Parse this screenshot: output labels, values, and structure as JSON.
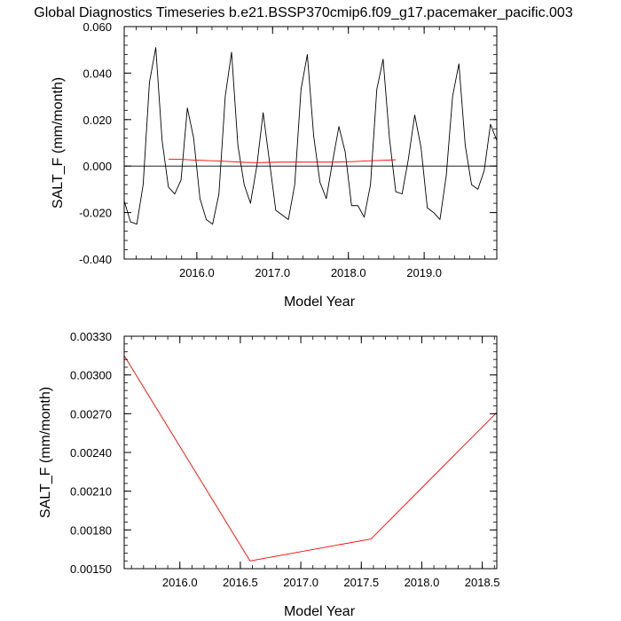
{
  "title": "Global Diagnostics Timeseries b.e21.BSSP370cmip6.f09_g17.pacemaker_pacific.003",
  "chart_data": [
    {
      "type": "line",
      "xlabel": "Model Year",
      "ylabel": "SALT_F (mm/month)",
      "xlim": [
        2015.0417,
        2019.9583
      ],
      "ylim": [
        -0.04,
        0.06
      ],
      "xticks": [
        2016.0,
        2017.0,
        2018.0,
        2019.0
      ],
      "xtick_labels": [
        "2016.0",
        "2017.0",
        "2018.0",
        "2019.0"
      ],
      "yticks": [
        -0.04,
        -0.02,
        0.0,
        0.02,
        0.04,
        0.06
      ],
      "ytick_labels": [
        "-0.040",
        "-0.020",
        "0.000",
        "0.020",
        "0.040",
        "0.060"
      ],
      "zero_line": true,
      "series": [
        {
          "color": "#000000",
          "x": [
            2015.0417,
            2015.125,
            2015.2083,
            2015.2917,
            2015.375,
            2015.4583,
            2015.5417,
            2015.625,
            2015.7083,
            2015.7917,
            2015.875,
            2015.9583,
            2016.0417,
            2016.125,
            2016.2083,
            2016.2917,
            2016.375,
            2016.4583,
            2016.5417,
            2016.625,
            2016.7083,
            2016.7917,
            2016.875,
            2016.9583,
            2017.0417,
            2017.125,
            2017.2083,
            2017.2917,
            2017.375,
            2017.4583,
            2017.5417,
            2017.625,
            2017.7083,
            2017.7917,
            2017.875,
            2017.9583,
            2018.0417,
            2018.125,
            2018.2083,
            2018.2917,
            2018.375,
            2018.4583,
            2018.5417,
            2018.625,
            2018.7083,
            2018.7917,
            2018.875,
            2018.9583,
            2019.0417,
            2019.125,
            2019.2083,
            2019.2917,
            2019.375,
            2019.4583,
            2019.5417,
            2019.625,
            2019.7083,
            2019.7917,
            2019.875,
            2019.9583
          ],
          "values": [
            -0.015,
            -0.024,
            -0.025,
            -0.008,
            0.036,
            0.051,
            0.011,
            -0.009,
            -0.012,
            -0.006,
            0.025,
            0.012,
            -0.014,
            -0.023,
            -0.025,
            -0.012,
            0.03,
            0.049,
            0.009,
            -0.008,
            -0.016,
            0.0,
            0.023,
            0.002,
            -0.019,
            -0.021,
            -0.023,
            -0.008,
            0.033,
            0.048,
            0.013,
            -0.007,
            -0.014,
            0.002,
            0.017,
            0.006,
            -0.017,
            -0.017,
            -0.022,
            -0.008,
            0.033,
            0.046,
            0.012,
            -0.011,
            -0.012,
            0.003,
            0.022,
            0.008,
            -0.018,
            -0.02,
            -0.023,
            -0.004,
            0.03,
            0.044,
            0.009,
            -0.008,
            -0.01,
            -0.002,
            0.018,
            0.011
          ]
        },
        {
          "color": "#ff0000",
          "x": [
            2015.625,
            2015.7917,
            2015.9583,
            2016.125,
            2016.2917,
            2016.4583,
            2016.625,
            2016.7917,
            2016.9583,
            2017.125,
            2017.2917,
            2017.4583,
            2017.625,
            2017.7917,
            2017.9583,
            2018.125,
            2018.2917,
            2018.4583,
            2018.625
          ],
          "values": [
            0.003,
            0.0029,
            0.0026,
            0.0024,
            0.0022,
            0.0019,
            0.0016,
            0.0015,
            0.0016,
            0.0017,
            0.0017,
            0.0017,
            0.0017,
            0.0017,
            0.0018,
            0.002,
            0.0023,
            0.0025,
            0.0027
          ]
        }
      ]
    },
    {
      "type": "line",
      "xlabel": "Model Year",
      "ylabel": "SALT_F (mm/month)",
      "xlim": [
        2015.54,
        2018.62
      ],
      "ylim": [
        0.0015,
        0.0033
      ],
      "xticks": [
        2016.0,
        2016.5,
        2017.0,
        2017.5,
        2018.0,
        2018.5
      ],
      "xtick_labels": [
        "2016.0",
        "2016.5",
        "2017.0",
        "2017.5",
        "2018.0",
        "2018.5"
      ],
      "yticks": [
        0.0015,
        0.0018,
        0.0021,
        0.0024,
        0.0027,
        0.003,
        0.0033
      ],
      "ytick_labels": [
        "0.00150",
        "0.00180",
        "0.00210",
        "0.00240",
        "0.00270",
        "0.00300",
        "0.00330"
      ],
      "zero_line": false,
      "series": [
        {
          "color": "#ff0000",
          "x": [
            2015.54,
            2016.58,
            2017.58,
            2018.62
          ],
          "values": [
            0.00315,
            0.00156,
            0.00173,
            0.00271
          ]
        }
      ]
    }
  ]
}
